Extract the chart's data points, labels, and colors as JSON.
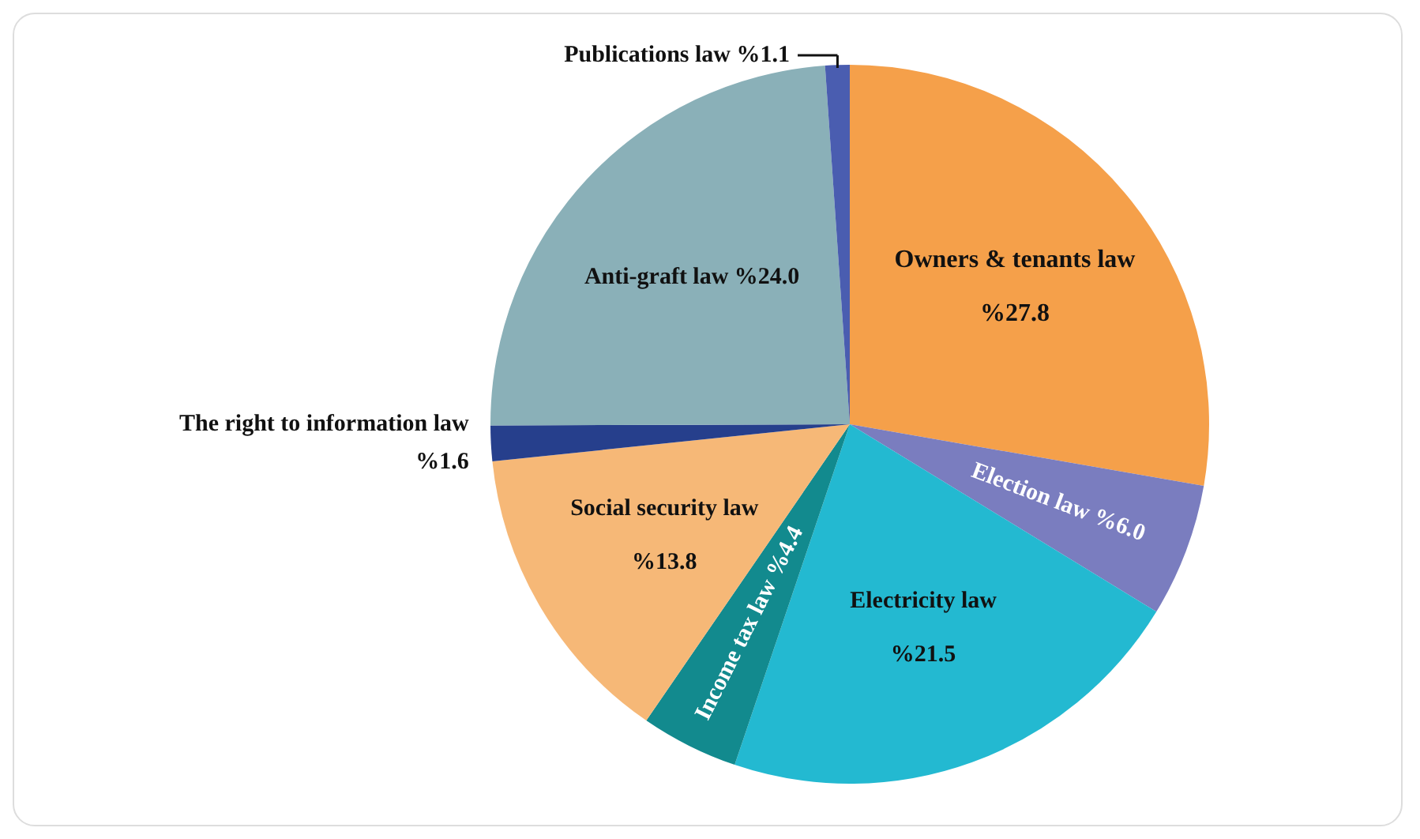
{
  "chart_data": {
    "type": "pie",
    "categories": [
      "Owners & tenants law",
      "Election law",
      "Electricity law",
      "Income tax law",
      "Social security law",
      "The right to information law",
      "Anti-graft law",
      "Publications law"
    ],
    "values": [
      27.8,
      6.0,
      21.5,
      4.4,
      13.8,
      1.6,
      24.0,
      1.1
    ],
    "value_labels": [
      "%27.8",
      "%6.0",
      "%21.5",
      "%4.4",
      "%13.8",
      "%1.6",
      "%24.0",
      "%1.1"
    ],
    "colors": [
      "#f5a04a",
      "#7a7dbf",
      "#23b9d1",
      "#128a8e",
      "#f6b877",
      "#263f8c",
      "#8ab0b8",
      "#4a5db0"
    ],
    "legend": false
  }
}
